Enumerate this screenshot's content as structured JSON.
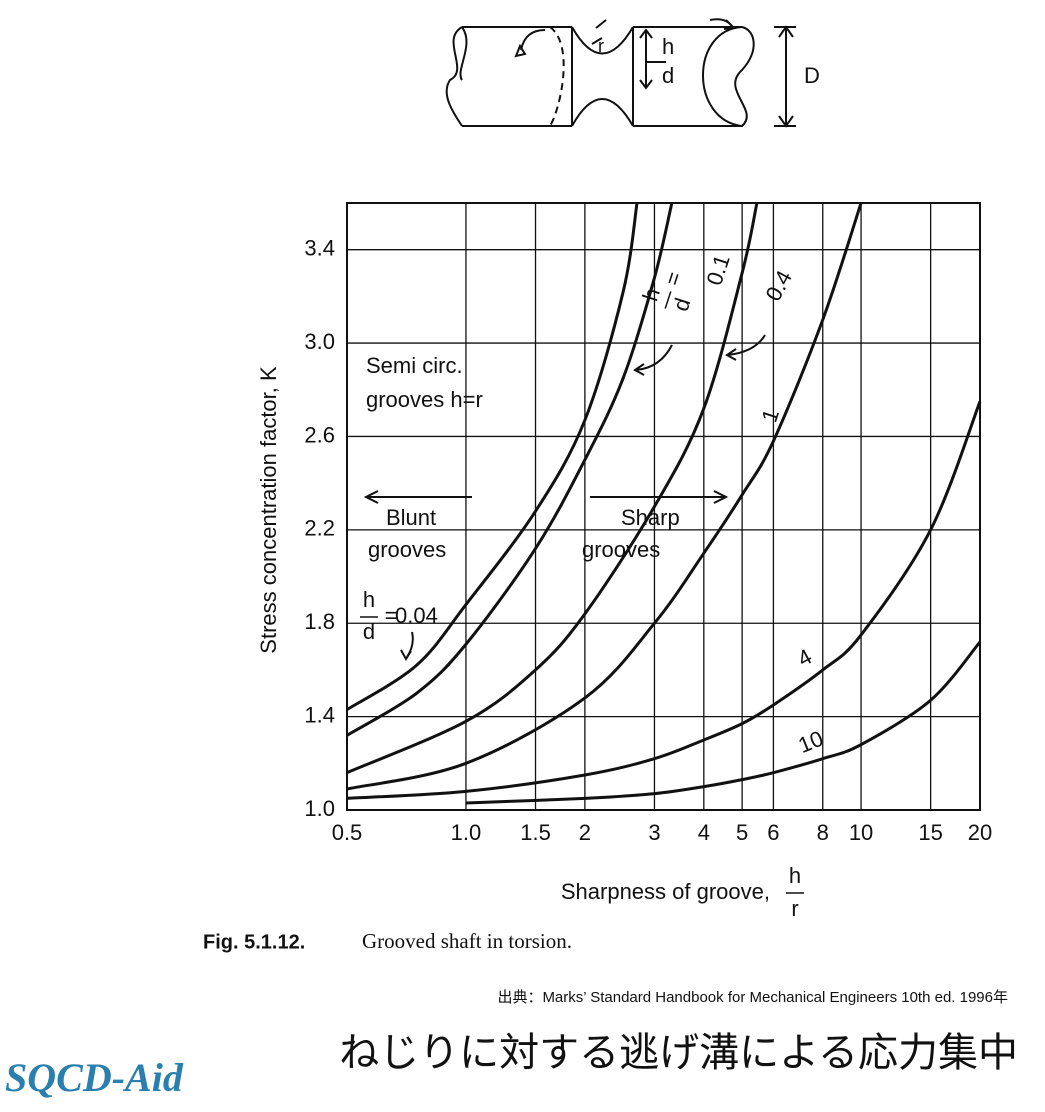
{
  "diagram": {
    "h": "h",
    "r": "r",
    "d": "d",
    "D": "D"
  },
  "chart_data": {
    "type": "line",
    "ylabel": "Stress concentration factor, K",
    "xlabel": "Sharpness of groove,",
    "xlabel_fraction": {
      "numerator": "h",
      "denominator": "r"
    },
    "curve_key": {
      "numerator": "h",
      "denominator": "d",
      "equals": "="
    },
    "annotations": [
      "Semi circ.",
      "grooves h=r",
      "Blunt",
      "grooves",
      "Sharp",
      "grooves"
    ],
    "xscale": "log",
    "grid": true,
    "color": "#111111",
    "xlim": [
      0.5,
      20
    ],
    "ylim": [
      1,
      3.6
    ],
    "xticks": [
      0.5,
      {
        "value": 1,
        "label": "1.0"
      },
      1.5,
      2,
      3,
      4,
      5,
      6,
      8,
      10,
      15,
      20
    ],
    "yticks": [
      {
        "value": 1,
        "label": "1.0"
      },
      1.4,
      1.8,
      2.2,
      2.6,
      {
        "value": 3,
        "label": "3.0"
      },
      3.4
    ],
    "series": [
      {
        "name": "0.04",
        "x": [
          0.5,
          0.75,
          1,
          1.5,
          2,
          2.5,
          2.71
        ],
        "values": [
          1.43,
          1.62,
          1.88,
          2.28,
          2.67,
          3.22,
          3.6
        ]
      },
      {
        "name": "0.1",
        "x": [
          0.5,
          0.75,
          1,
          1.5,
          2,
          2.5,
          3,
          3.32
        ],
        "values": [
          1.32,
          1.5,
          1.71,
          2.12,
          2.5,
          2.85,
          3.28,
          3.6
        ]
      },
      {
        "name": "0.4",
        "x": [
          0.5,
          1,
          1.5,
          2,
          3,
          4,
          5,
          5.45
        ],
        "values": [
          1.16,
          1.38,
          1.6,
          1.84,
          2.3,
          2.72,
          3.3,
          3.6
        ]
      },
      {
        "name": "1",
        "x": [
          0.5,
          1,
          2,
          3,
          4,
          5,
          6,
          8,
          10
        ],
        "values": [
          1.09,
          1.2,
          1.48,
          1.8,
          2.1,
          2.35,
          2.58,
          3.1,
          3.6
        ]
      },
      {
        "name": "4",
        "x": [
          0.5,
          1,
          2,
          3,
          4,
          5,
          6,
          8,
          10,
          15,
          20
        ],
        "values": [
          1.05,
          1.08,
          1.15,
          1.22,
          1.3,
          1.37,
          1.45,
          1.6,
          1.75,
          2.2,
          2.75
        ]
      },
      {
        "name": "10",
        "x": [
          1,
          2,
          3,
          4,
          5,
          6,
          8,
          10,
          15,
          20
        ],
        "values": [
          1.03,
          1.05,
          1.07,
          1.1,
          1.13,
          1.16,
          1.22,
          1.28,
          1.47,
          1.72
        ]
      }
    ]
  },
  "caption": {
    "label": "Fig. 5.1.12.",
    "text": "Grooved shaft in torsion."
  },
  "source": "出典：Marks’ Standard Handbook for Mechanical Engineers  10th ed.  1996年",
  "title": "ねじりに対する逃げ溝による応力集中",
  "logo": "SQCD-Aid"
}
